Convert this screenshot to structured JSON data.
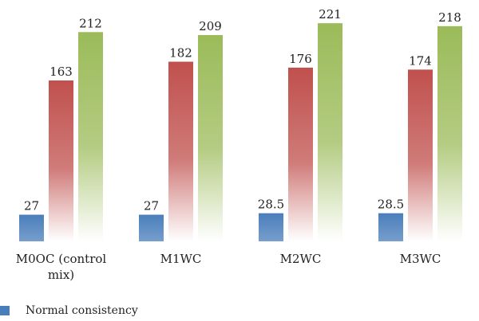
{
  "chart_data": {
    "type": "bar",
    "categories": [
      "M0OC (control mix)",
      "M1WC",
      "M2WC",
      "M3WC"
    ],
    "category_lines": [
      [
        "M0OC (control",
        "mix)"
      ],
      [
        "M1WC"
      ],
      [
        "M2WC"
      ],
      [
        "M3WC"
      ]
    ],
    "series": [
      {
        "name": "Normal consistency",
        "values": [
          27,
          27,
          28.5,
          28.5
        ],
        "labels": [
          "27",
          "27",
          "28.5",
          "28.5"
        ],
        "color": "#4a7ebb"
      },
      {
        "name": "",
        "values": [
          163,
          182,
          176,
          174
        ],
        "labels": [
          "163",
          "182",
          "176",
          "174"
        ],
        "color": "#c0504d"
      },
      {
        "name": "",
        "values": [
          212,
          209,
          221,
          218
        ],
        "labels": [
          "212",
          "209",
          "221",
          "218"
        ],
        "color": "#9bbb59"
      }
    ],
    "ylim": [
      0,
      230
    ],
    "grid": false,
    "legend_position": "bottom-left"
  },
  "legend": {
    "label": "Normal consistency",
    "color": "#4a7ebb"
  }
}
